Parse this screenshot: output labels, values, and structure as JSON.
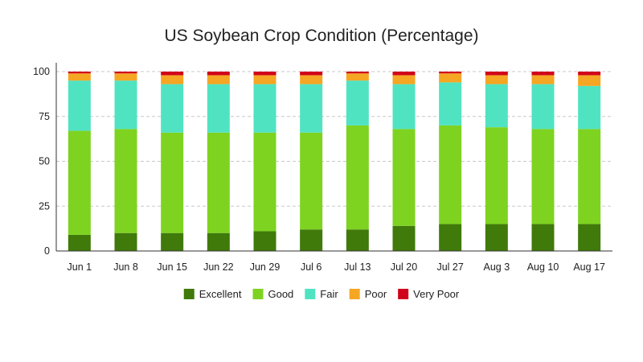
{
  "chart_data": {
    "type": "bar",
    "stacked": true,
    "title": "US Soybean Crop Condition (Percentage)",
    "xlabel": "",
    "ylabel": "",
    "ylim": [
      0,
      100
    ],
    "yticks": [
      0,
      25,
      50,
      75,
      100
    ],
    "grid": "horizontal dashed",
    "legend_position": "bottom",
    "categories": [
      "Jun 1",
      "Jun 8",
      "Jun 15",
      "Jun 22",
      "Jun 29",
      "Jul 6",
      "Jul 13",
      "Jul 20",
      "Jul 27",
      "Aug 3",
      "Aug 10",
      "Aug 17"
    ],
    "series": [
      {
        "name": "Excellent",
        "color": "#3f7a0a",
        "values": [
          9,
          10,
          10,
          10,
          11,
          12,
          12,
          14,
          15,
          15,
          15,
          15
        ]
      },
      {
        "name": "Good",
        "color": "#7ed321",
        "values": [
          58,
          58,
          56,
          56,
          55,
          54,
          58,
          54,
          55,
          54,
          53,
          53
        ]
      },
      {
        "name": "Fair",
        "color": "#50e3c2",
        "values": [
          28,
          27,
          27,
          27,
          27,
          27,
          25,
          25,
          24,
          24,
          25,
          24
        ]
      },
      {
        "name": "Poor",
        "color": "#f5a623",
        "values": [
          4,
          4,
          5,
          5,
          5,
          5,
          4,
          5,
          5,
          5,
          5,
          6
        ]
      },
      {
        "name": "Very Poor",
        "color": "#d0021b",
        "values": [
          1,
          1,
          2,
          2,
          2,
          2,
          1,
          2,
          1,
          2,
          2,
          2
        ]
      }
    ]
  }
}
